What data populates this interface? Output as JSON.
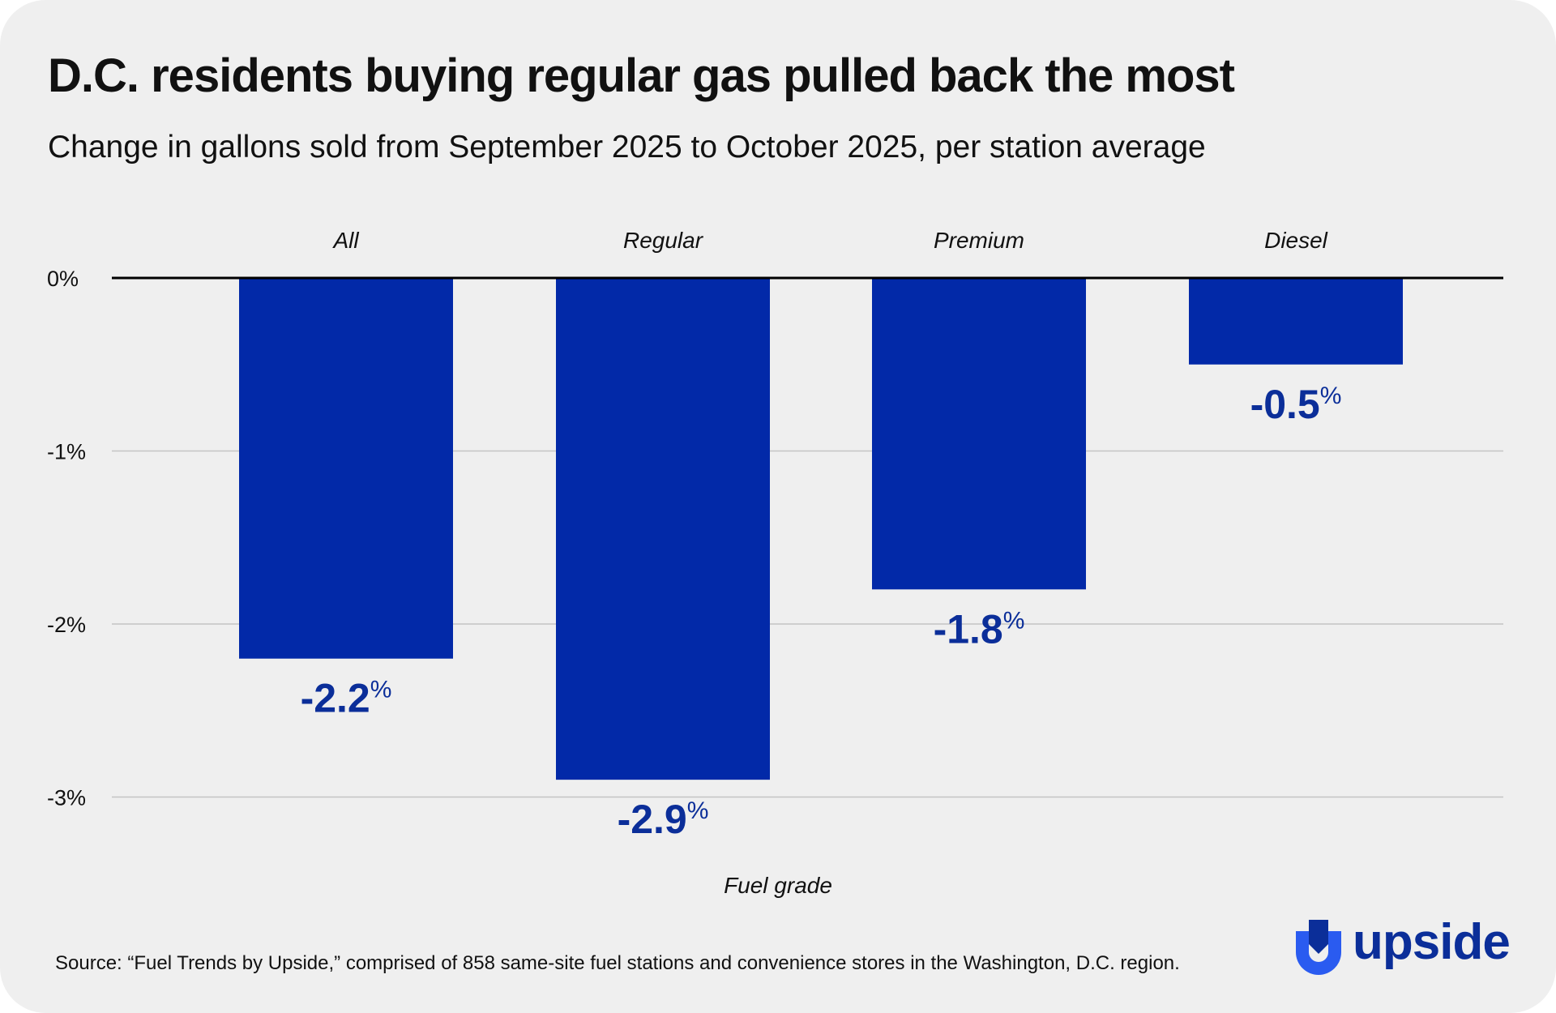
{
  "chart_data": {
    "type": "bar",
    "title": "D.C. residents buying regular gas pulled back the most",
    "subtitle": "Change in gallons sold from September 2025 to October 2025, per station average",
    "categories": [
      "All",
      "Regular",
      "Premium",
      "Diesel"
    ],
    "values": [
      -2.2,
      -2.9,
      -1.8,
      -0.5
    ],
    "value_labels": [
      "-2.2",
      "-2.9",
      "-1.8",
      "-0.5"
    ],
    "value_suffix": "%",
    "xlabel": "Fuel grade",
    "ylabel": "",
    "ylim": [
      -3,
      0
    ],
    "yticks": [
      0,
      -1,
      -2,
      -3
    ],
    "ytick_labels": [
      "0%",
      "-1%",
      "-2%",
      "-3%"
    ],
    "grid": true,
    "bar_color": "#0229a8",
    "label_color": "#0b2e99"
  },
  "footer": {
    "source": "Source: “Fuel Trends by Upside,” comprised of 858 same-site fuel stations and convenience stores in the Washington, D.C. region."
  },
  "brand": {
    "name": "upside",
    "icon": "upside-logo-icon",
    "color": "#0b2e99"
  }
}
